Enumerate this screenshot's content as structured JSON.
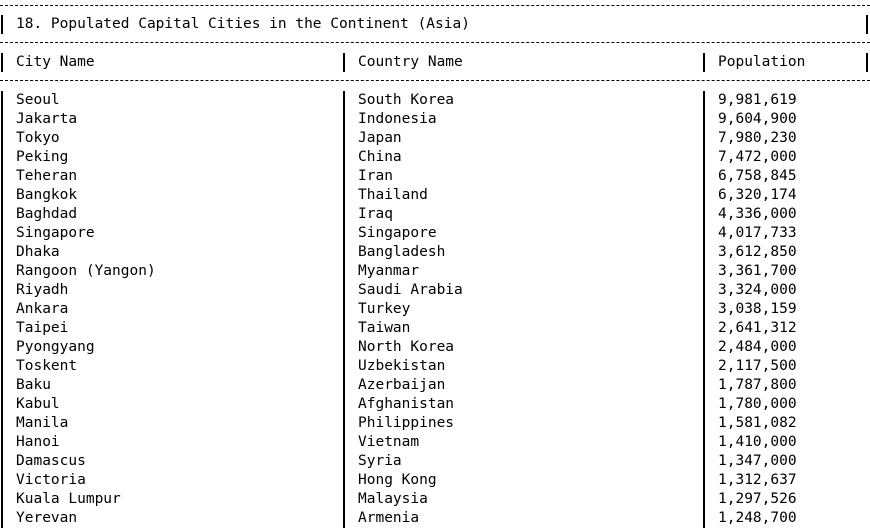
{
  "report": {
    "title": "18. Populated Capital Cities in the Continent (Asia)"
  },
  "table": {
    "columns": [
      "City Name",
      "Country Name",
      "Population"
    ],
    "rows": [
      [
        "Seoul",
        "South Korea",
        "9,981,619"
      ],
      [
        "Jakarta",
        "Indonesia",
        "9,604,900"
      ],
      [
        "Tokyo",
        "Japan",
        "7,980,230"
      ],
      [
        "Peking",
        "China",
        "7,472,000"
      ],
      [
        "Teheran",
        "Iran",
        "6,758,845"
      ],
      [
        "Bangkok",
        "Thailand",
        "6,320,174"
      ],
      [
        "Baghdad",
        "Iraq",
        "4,336,000"
      ],
      [
        "Singapore",
        "Singapore",
        "4,017,733"
      ],
      [
        "Dhaka",
        "Bangladesh",
        "3,612,850"
      ],
      [
        "Rangoon (Yangon)",
        "Myanmar",
        "3,361,700"
      ],
      [
        "Riyadh",
        "Saudi Arabia",
        "3,324,000"
      ],
      [
        "Ankara",
        "Turkey",
        "3,038,159"
      ],
      [
        "Taipei",
        "Taiwan",
        "2,641,312"
      ],
      [
        "Pyongyang",
        "North Korea",
        "2,484,000"
      ],
      [
        "Toskent",
        "Uzbekistan",
        "2,117,500"
      ],
      [
        "Baku",
        "Azerbaijan",
        "1,787,800"
      ],
      [
        "Kabul",
        "Afghanistan",
        "1,780,000"
      ],
      [
        "Manila",
        "Philippines",
        "1,581,082"
      ],
      [
        "Hanoi",
        "Vietnam",
        "1,410,000"
      ],
      [
        "Damascus",
        "Syria",
        "1,347,000"
      ],
      [
        "Victoria",
        "Hong Kong",
        "1,312,637"
      ],
      [
        "Kuala Lumpur",
        "Malaysia",
        "1,297,526"
      ],
      [
        "Yerevan",
        "Armenia",
        "1,248,700"
      ]
    ]
  }
}
